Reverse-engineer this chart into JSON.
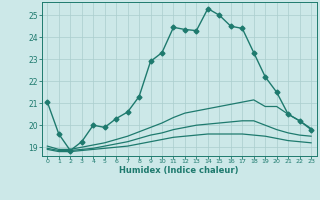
{
  "xlabel": "Humidex (Indice chaleur)",
  "xlim": [
    -0.5,
    23.5
  ],
  "ylim": [
    18.6,
    25.6
  ],
  "yticks": [
    19,
    20,
    21,
    22,
    23,
    24,
    25
  ],
  "xticks": [
    0,
    1,
    2,
    3,
    4,
    5,
    6,
    7,
    8,
    9,
    10,
    11,
    12,
    13,
    14,
    15,
    16,
    17,
    18,
    19,
    20,
    21,
    22,
    23
  ],
  "background_color": "#cce8e8",
  "grid_color": "#aacece",
  "line_color": "#1e7a6e",
  "lines": [
    {
      "x": [
        0,
        1,
        2,
        3,
        4,
        5,
        6,
        7,
        8,
        9,
        10,
        11,
        12,
        13,
        14,
        15,
        16,
        17,
        18,
        19,
        20,
        21,
        22,
        23
      ],
      "y": [
        21.05,
        19.6,
        18.85,
        19.25,
        20.0,
        19.9,
        20.3,
        20.6,
        21.3,
        22.9,
        23.3,
        24.45,
        24.35,
        24.3,
        25.3,
        25.0,
        24.5,
        24.4,
        23.3,
        22.2,
        21.5,
        20.5,
        20.2,
        19.8
      ],
      "marker": "D",
      "markersize": 2.5,
      "linewidth": 1.0
    },
    {
      "x": [
        0,
        1,
        2,
        3,
        4,
        5,
        6,
        7,
        8,
        9,
        10,
        11,
        12,
        13,
        14,
        15,
        16,
        17,
        18,
        19,
        20,
        21,
        22,
        23
      ],
      "y": [
        19.05,
        18.9,
        18.9,
        19.0,
        19.1,
        19.2,
        19.35,
        19.5,
        19.7,
        19.9,
        20.1,
        20.35,
        20.55,
        20.65,
        20.75,
        20.85,
        20.95,
        21.05,
        21.15,
        20.85,
        20.85,
        20.5,
        20.2,
        19.85
      ],
      "marker": null,
      "linewidth": 0.9
    },
    {
      "x": [
        0,
        1,
        2,
        3,
        4,
        5,
        6,
        7,
        8,
        9,
        10,
        11,
        12,
        13,
        14,
        15,
        16,
        17,
        18,
        19,
        20,
        21,
        22,
        23
      ],
      "y": [
        18.95,
        18.85,
        18.85,
        18.9,
        18.95,
        19.05,
        19.15,
        19.25,
        19.4,
        19.55,
        19.65,
        19.8,
        19.9,
        20.0,
        20.05,
        20.1,
        20.15,
        20.2,
        20.2,
        20.0,
        19.8,
        19.65,
        19.55,
        19.5
      ],
      "marker": null,
      "linewidth": 0.9
    },
    {
      "x": [
        0,
        1,
        2,
        3,
        4,
        5,
        6,
        7,
        8,
        9,
        10,
        11,
        12,
        13,
        14,
        15,
        16,
        17,
        18,
        19,
        20,
        21,
        22,
        23
      ],
      "y": [
        18.9,
        18.8,
        18.8,
        18.85,
        18.9,
        18.95,
        19.0,
        19.05,
        19.15,
        19.25,
        19.35,
        19.45,
        19.5,
        19.55,
        19.6,
        19.6,
        19.6,
        19.6,
        19.55,
        19.5,
        19.4,
        19.3,
        19.25,
        19.2
      ],
      "marker": null,
      "linewidth": 0.9
    }
  ]
}
